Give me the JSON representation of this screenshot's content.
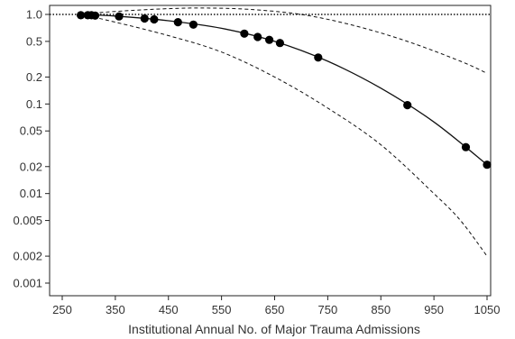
{
  "chart_data": {
    "type": "scatter",
    "title": "",
    "xlabel": "Institutional Annual No. of Major Trauma Admissions",
    "ylabel": "",
    "x_scale": "linear",
    "y_scale": "log",
    "xlim": [
      250,
      1050
    ],
    "ylim": [
      0.0007,
      1.0
    ],
    "grid": false,
    "legend": "none",
    "x_ticks": [
      {
        "value": 250,
        "label": "250"
      },
      {
        "value": 350,
        "label": "350"
      },
      {
        "value": 450,
        "label": "450"
      },
      {
        "value": 550,
        "label": "550"
      },
      {
        "value": 650,
        "label": "650"
      },
      {
        "value": 750,
        "label": "750"
      },
      {
        "value": 850,
        "label": "850"
      },
      {
        "value": 950,
        "label": "950"
      },
      {
        "value": 1050,
        "label": "1050"
      }
    ],
    "y_ticks": [
      {
        "value": 1.0,
        "label": "1.0"
      },
      {
        "value": 0.5,
        "label": "0.5"
      },
      {
        "value": 0.2,
        "label": "0.2"
      },
      {
        "value": 0.1,
        "label": "0.1"
      },
      {
        "value": 0.05,
        "label": "0.05"
      },
      {
        "value": 0.02,
        "label": "0.02"
      },
      {
        "value": 0.01,
        "label": "0.01"
      },
      {
        "value": 0.005,
        "label": "0.005"
      },
      {
        "value": 0.002,
        "label": "0.002"
      },
      {
        "value": 0.001,
        "label": "0.001"
      }
    ],
    "reference_line": {
      "y": 1.0,
      "style": "dotted"
    },
    "series": [
      {
        "kind": "points",
        "points": [
          {
            "x": 285,
            "y": 0.98
          },
          {
            "x": 298,
            "y": 0.98
          },
          {
            "x": 305,
            "y": 0.98
          },
          {
            "x": 312,
            "y": 0.97
          },
          {
            "x": 357,
            "y": 0.95
          },
          {
            "x": 405,
            "y": 0.9
          },
          {
            "x": 423,
            "y": 0.88
          },
          {
            "x": 468,
            "y": 0.82
          },
          {
            "x": 497,
            "y": 0.77
          },
          {
            "x": 593,
            "y": 0.61
          },
          {
            "x": 618,
            "y": 0.56
          },
          {
            "x": 640,
            "y": 0.52
          },
          {
            "x": 660,
            "y": 0.48
          },
          {
            "x": 732,
            "y": 0.33
          },
          {
            "x": 900,
            "y": 0.097
          },
          {
            "x": 1010,
            "y": 0.033
          },
          {
            "x": 1050,
            "y": 0.021
          }
        ]
      },
      {
        "kind": "fit",
        "line_style": "solid",
        "points": [
          {
            "x": 285,
            "y": 1.0
          },
          {
            "x": 350,
            "y": 0.96
          },
          {
            "x": 450,
            "y": 0.85
          },
          {
            "x": 550,
            "y": 0.7
          },
          {
            "x": 650,
            "y": 0.5
          },
          {
            "x": 750,
            "y": 0.3
          },
          {
            "x": 850,
            "y": 0.15
          },
          {
            "x": 950,
            "y": 0.063
          },
          {
            "x": 1050,
            "y": 0.021
          }
        ]
      },
      {
        "kind": "upper-bound",
        "line_style": "dashed",
        "points": [
          {
            "x": 285,
            "y": 1.0
          },
          {
            "x": 350,
            "y": 1.08
          },
          {
            "x": 450,
            "y": 1.16
          },
          {
            "x": 520,
            "y": 1.18
          },
          {
            "x": 600,
            "y": 1.14
          },
          {
            "x": 700,
            "y": 1.0
          },
          {
            "x": 800,
            "y": 0.75
          },
          {
            "x": 900,
            "y": 0.5
          },
          {
            "x": 1000,
            "y": 0.3
          },
          {
            "x": 1050,
            "y": 0.22
          }
        ]
      },
      {
        "kind": "lower-bound",
        "line_style": "dashed",
        "points": [
          {
            "x": 285,
            "y": 1.0
          },
          {
            "x": 350,
            "y": 0.82
          },
          {
            "x": 450,
            "y": 0.58
          },
          {
            "x": 550,
            "y": 0.38
          },
          {
            "x": 650,
            "y": 0.2
          },
          {
            "x": 750,
            "y": 0.09
          },
          {
            "x": 850,
            "y": 0.035
          },
          {
            "x": 950,
            "y": 0.01
          },
          {
            "x": 1000,
            "y": 0.005
          },
          {
            "x": 1050,
            "y": 0.002
          }
        ]
      }
    ]
  }
}
